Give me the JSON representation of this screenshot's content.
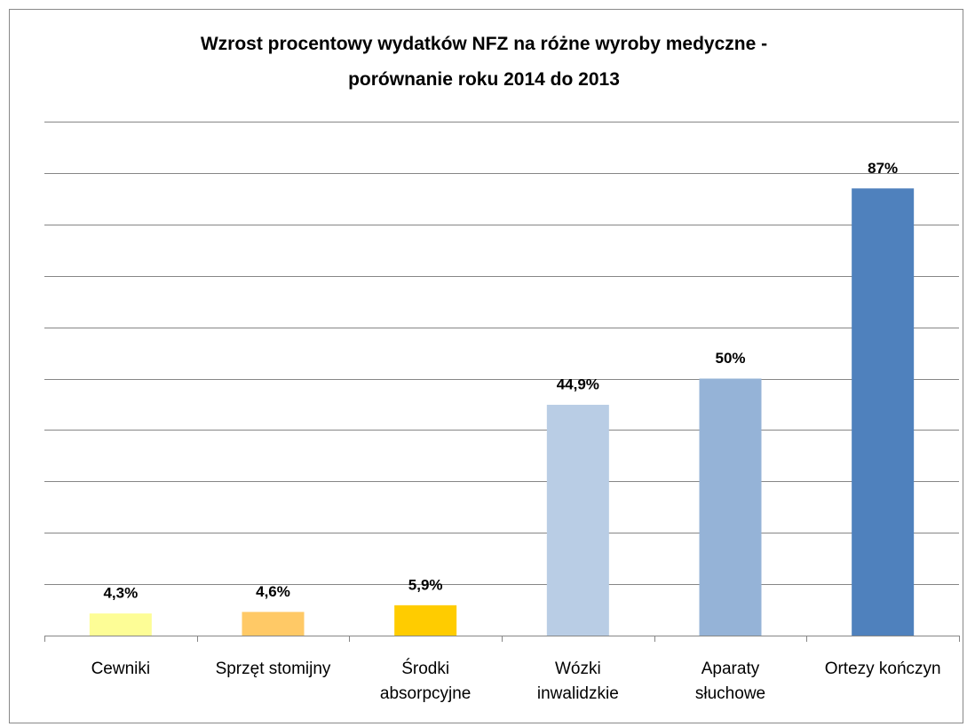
{
  "chart_data": {
    "type": "bar",
    "title": "Wzrost procentowy wydatków NFZ na różne wyroby medyczne -\nporównanie roku 2014 do 2013",
    "categories": [
      "Cewniki",
      "Sprzęt stomijny",
      "Środki\nabsorpcyjne",
      "Wózki\ninwalidzkie",
      "Aparaty\nsłuchowe",
      "Ortezy kończyn"
    ],
    "values": [
      4.3,
      4.6,
      5.9,
      44.9,
      50,
      87
    ],
    "value_labels": [
      "4,3%",
      "4,6%",
      "5,9%",
      "44,9%",
      "50%",
      "87%"
    ],
    "colors": [
      "#fdfd96",
      "#ffc966",
      "#ffcc00",
      "#b9cde5",
      "#95b3d7",
      "#4f81bd"
    ],
    "ylim": [
      0,
      100
    ],
    "yticks": [
      0,
      10,
      20,
      30,
      40,
      50,
      60,
      70,
      80,
      90,
      100
    ],
    "grid": true
  }
}
